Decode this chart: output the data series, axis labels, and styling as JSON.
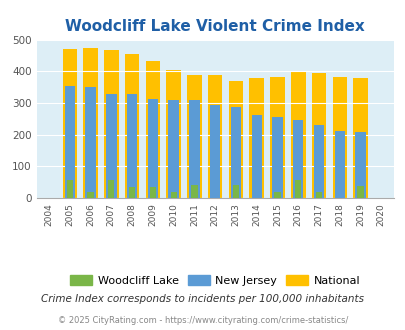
{
  "title": "Woodcliff Lake Violent Crime Index",
  "years": [
    2004,
    2005,
    2006,
    2007,
    2008,
    2009,
    2010,
    2011,
    2012,
    2013,
    2014,
    2015,
    2016,
    2017,
    2018,
    2019,
    2020
  ],
  "woodcliff_lake": [
    0,
    57,
    19,
    57,
    36,
    36,
    19,
    40,
    0,
    40,
    0,
    19,
    57,
    19,
    0,
    38,
    0
  ],
  "new_jersey": [
    0,
    355,
    350,
    328,
    328,
    312,
    309,
    309,
    292,
    288,
    262,
    255,
    247,
    230,
    210,
    208,
    0
  ],
  "national": [
    0,
    469,
    473,
    467,
    455,
    432,
    405,
    389,
    387,
    368,
    378,
    383,
    397,
    394,
    381,
    379,
    0
  ],
  "wc_color": "#7ab648",
  "nj_color": "#5b9bd5",
  "nat_color": "#ffc000",
  "bg_color": "#ddeef6",
  "title_color": "#1f5fa6",
  "ylim": [
    0,
    500
  ],
  "yticks": [
    0,
    100,
    200,
    300,
    400,
    500
  ],
  "footnote1": "Crime Index corresponds to incidents per 100,000 inhabitants",
  "footnote2": "© 2025 CityRating.com - https://www.cityrating.com/crime-statistics/",
  "nat_bar_width": 0.7,
  "nj_bar_width": 0.5,
  "wc_bar_width": 0.3
}
